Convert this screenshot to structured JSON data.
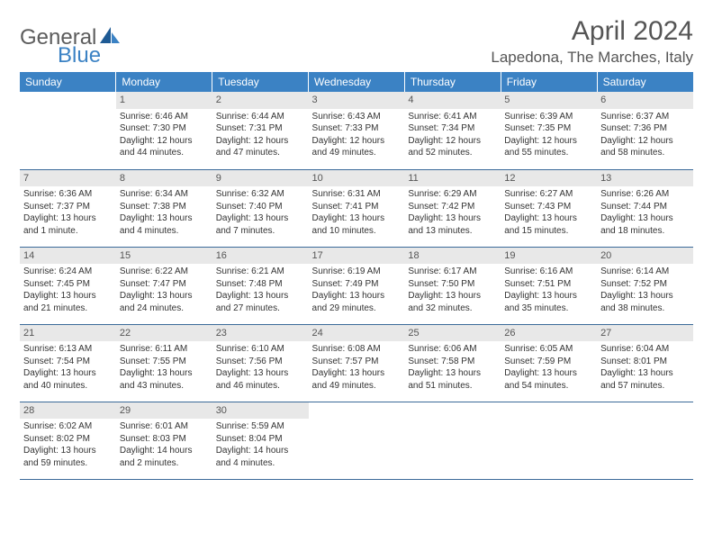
{
  "logo": {
    "part1": "General",
    "part2": "Blue"
  },
  "title": "April 2024",
  "location": "Lapedona, The Marches, Italy",
  "colors": {
    "header_bg": "#3b82c4",
    "header_text": "#ffffff",
    "row_border": "#3b6a99",
    "daynum_bg": "#e8e8e8",
    "daynum_text": "#555555",
    "body_text": "#333333",
    "title_text": "#555555"
  },
  "weekdays": [
    "Sunday",
    "Monday",
    "Tuesday",
    "Wednesday",
    "Thursday",
    "Friday",
    "Saturday"
  ],
  "start_offset": 1,
  "days": [
    {
      "n": "1",
      "sr": "6:46 AM",
      "ss": "7:30 PM",
      "dl": "12 hours and 44 minutes."
    },
    {
      "n": "2",
      "sr": "6:44 AM",
      "ss": "7:31 PM",
      "dl": "12 hours and 47 minutes."
    },
    {
      "n": "3",
      "sr": "6:43 AM",
      "ss": "7:33 PM",
      "dl": "12 hours and 49 minutes."
    },
    {
      "n": "4",
      "sr": "6:41 AM",
      "ss": "7:34 PM",
      "dl": "12 hours and 52 minutes."
    },
    {
      "n": "5",
      "sr": "6:39 AM",
      "ss": "7:35 PM",
      "dl": "12 hours and 55 minutes."
    },
    {
      "n": "6",
      "sr": "6:37 AM",
      "ss": "7:36 PM",
      "dl": "12 hours and 58 minutes."
    },
    {
      "n": "7",
      "sr": "6:36 AM",
      "ss": "7:37 PM",
      "dl": "13 hours and 1 minute."
    },
    {
      "n": "8",
      "sr": "6:34 AM",
      "ss": "7:38 PM",
      "dl": "13 hours and 4 minutes."
    },
    {
      "n": "9",
      "sr": "6:32 AM",
      "ss": "7:40 PM",
      "dl": "13 hours and 7 minutes."
    },
    {
      "n": "10",
      "sr": "6:31 AM",
      "ss": "7:41 PM",
      "dl": "13 hours and 10 minutes."
    },
    {
      "n": "11",
      "sr": "6:29 AM",
      "ss": "7:42 PM",
      "dl": "13 hours and 13 minutes."
    },
    {
      "n": "12",
      "sr": "6:27 AM",
      "ss": "7:43 PM",
      "dl": "13 hours and 15 minutes."
    },
    {
      "n": "13",
      "sr": "6:26 AM",
      "ss": "7:44 PM",
      "dl": "13 hours and 18 minutes."
    },
    {
      "n": "14",
      "sr": "6:24 AM",
      "ss": "7:45 PM",
      "dl": "13 hours and 21 minutes."
    },
    {
      "n": "15",
      "sr": "6:22 AM",
      "ss": "7:47 PM",
      "dl": "13 hours and 24 minutes."
    },
    {
      "n": "16",
      "sr": "6:21 AM",
      "ss": "7:48 PM",
      "dl": "13 hours and 27 minutes."
    },
    {
      "n": "17",
      "sr": "6:19 AM",
      "ss": "7:49 PM",
      "dl": "13 hours and 29 minutes."
    },
    {
      "n": "18",
      "sr": "6:17 AM",
      "ss": "7:50 PM",
      "dl": "13 hours and 32 minutes."
    },
    {
      "n": "19",
      "sr": "6:16 AM",
      "ss": "7:51 PM",
      "dl": "13 hours and 35 minutes."
    },
    {
      "n": "20",
      "sr": "6:14 AM",
      "ss": "7:52 PM",
      "dl": "13 hours and 38 minutes."
    },
    {
      "n": "21",
      "sr": "6:13 AM",
      "ss": "7:54 PM",
      "dl": "13 hours and 40 minutes."
    },
    {
      "n": "22",
      "sr": "6:11 AM",
      "ss": "7:55 PM",
      "dl": "13 hours and 43 minutes."
    },
    {
      "n": "23",
      "sr": "6:10 AM",
      "ss": "7:56 PM",
      "dl": "13 hours and 46 minutes."
    },
    {
      "n": "24",
      "sr": "6:08 AM",
      "ss": "7:57 PM",
      "dl": "13 hours and 49 minutes."
    },
    {
      "n": "25",
      "sr": "6:06 AM",
      "ss": "7:58 PM",
      "dl": "13 hours and 51 minutes."
    },
    {
      "n": "26",
      "sr": "6:05 AM",
      "ss": "7:59 PM",
      "dl": "13 hours and 54 minutes."
    },
    {
      "n": "27",
      "sr": "6:04 AM",
      "ss": "8:01 PM",
      "dl": "13 hours and 57 minutes."
    },
    {
      "n": "28",
      "sr": "6:02 AM",
      "ss": "8:02 PM",
      "dl": "13 hours and 59 minutes."
    },
    {
      "n": "29",
      "sr": "6:01 AM",
      "ss": "8:03 PM",
      "dl": "14 hours and 2 minutes."
    },
    {
      "n": "30",
      "sr": "5:59 AM",
      "ss": "8:04 PM",
      "dl": "14 hours and 4 minutes."
    }
  ],
  "labels": {
    "sunrise": "Sunrise:",
    "sunset": "Sunset:",
    "daylight": "Daylight:"
  }
}
